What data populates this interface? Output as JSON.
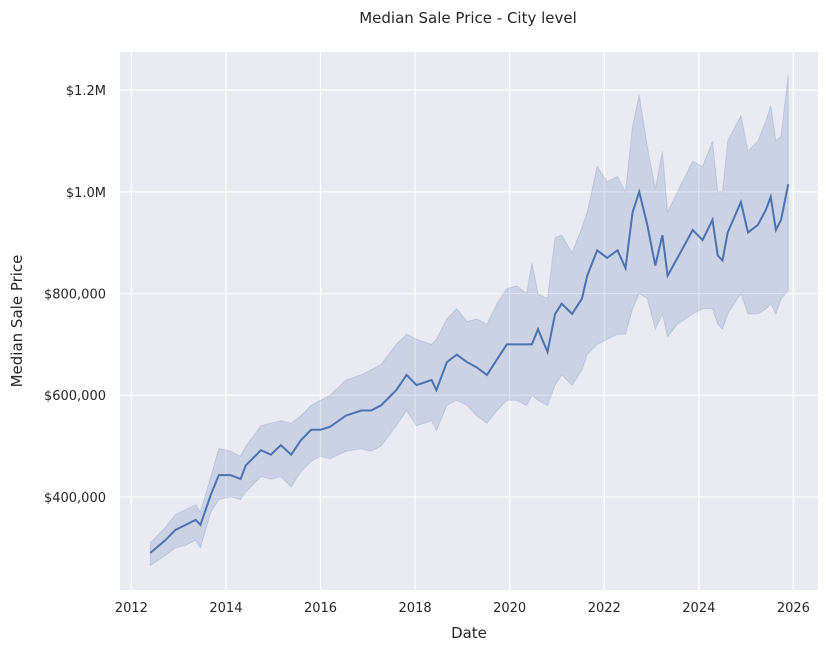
{
  "chart_data": {
    "type": "line",
    "title": "Median Sale Price -  City level",
    "xlabel": "Date",
    "ylabel": "Median Sale Price",
    "xlim": [
      2011.76,
      2026.52
    ],
    "ylim": [
      217000,
      1275000
    ],
    "grid": true,
    "x_ticks": [
      {
        "value": 2012,
        "label": "2012"
      },
      {
        "value": 2014,
        "label": "2014"
      },
      {
        "value": 2016,
        "label": "2016"
      },
      {
        "value": 2018,
        "label": "2018"
      },
      {
        "value": 2020,
        "label": "2020"
      },
      {
        "value": 2022,
        "label": "2022"
      },
      {
        "value": 2024,
        "label": "2024"
      },
      {
        "value": 2026,
        "label": "2026"
      }
    ],
    "y_ticks": [
      {
        "value": 400000,
        "label": "$400,000"
      },
      {
        "value": 600000,
        "label": "$600,000"
      },
      {
        "value": 800000,
        "label": "$800,000"
      },
      {
        "value": 1000000,
        "label": "$1.0M"
      },
      {
        "value": 1200000,
        "label": "$1.2M"
      }
    ],
    "colors": {
      "line": "#4c72b0",
      "band": "#4c72b0",
      "background": "#eaeaf2",
      "grid": "#ffffff"
    },
    "series": [
      {
        "name": "Median Sale Price",
        "points": [
          [
            2012.4,
            290000,
            265000,
            310000
          ],
          [
            2012.72,
            315000,
            285000,
            340000
          ],
          [
            2012.93,
            335000,
            300000,
            365000
          ],
          [
            2013.15,
            345000,
            305000,
            375000
          ],
          [
            2013.36,
            355000,
            315000,
            385000
          ],
          [
            2013.46,
            345000,
            300000,
            370000
          ],
          [
            2013.68,
            404000,
            370000,
            440000
          ],
          [
            2013.85,
            443000,
            395000,
            495000
          ],
          [
            2014.1,
            443000,
            400000,
            490000
          ],
          [
            2014.31,
            435000,
            395000,
            480000
          ],
          [
            2014.42,
            462000,
            410000,
            500000
          ],
          [
            2014.74,
            492000,
            440000,
            540000
          ],
          [
            2014.95,
            483000,
            435000,
            545000
          ],
          [
            2015.16,
            502000,
            440000,
            550000
          ],
          [
            2015.38,
            483000,
            420000,
            545000
          ],
          [
            2015.59,
            512000,
            450000,
            560000
          ],
          [
            2015.8,
            532000,
            470000,
            580000
          ],
          [
            2016.0,
            532000,
            480000,
            590000
          ],
          [
            2016.2,
            538000,
            475000,
            600000
          ],
          [
            2016.54,
            560000,
            490000,
            630000
          ],
          [
            2016.86,
            570000,
            495000,
            640000
          ],
          [
            2017.07,
            570000,
            490000,
            650000
          ],
          [
            2017.28,
            580000,
            500000,
            660000
          ],
          [
            2017.6,
            610000,
            540000,
            700000
          ],
          [
            2017.82,
            640000,
            570000,
            720000
          ],
          [
            2018.03,
            620000,
            540000,
            710000
          ],
          [
            2018.35,
            630000,
            550000,
            700000
          ],
          [
            2018.45,
            610000,
            530000,
            710000
          ],
          [
            2018.67,
            665000,
            580000,
            750000
          ],
          [
            2018.88,
            680000,
            590000,
            770000
          ],
          [
            2019.1,
            665000,
            580000,
            745000
          ],
          [
            2019.3,
            655000,
            560000,
            750000
          ],
          [
            2019.52,
            640000,
            545000,
            740000
          ],
          [
            2019.73,
            670000,
            570000,
            780000
          ],
          [
            2019.94,
            700000,
            590000,
            810000
          ],
          [
            2020.15,
            700000,
            590000,
            815000
          ],
          [
            2020.36,
            700000,
            580000,
            800000
          ],
          [
            2020.47,
            700000,
            600000,
            860000
          ],
          [
            2020.6,
            730000,
            590000,
            800000
          ],
          [
            2020.8,
            685000,
            580000,
            790000
          ],
          [
            2020.96,
            760000,
            620000,
            910000
          ],
          [
            2021.1,
            780000,
            640000,
            915000
          ],
          [
            2021.32,
            760000,
            620000,
            880000
          ],
          [
            2021.53,
            790000,
            650000,
            930000
          ],
          [
            2021.64,
            835000,
            680000,
            960000
          ],
          [
            2021.85,
            885000,
            700000,
            1050000
          ],
          [
            2022.06,
            870000,
            710000,
            1020000
          ],
          [
            2022.28,
            885000,
            720000,
            1030000
          ],
          [
            2022.45,
            850000,
            720000,
            1000000
          ],
          [
            2022.6,
            960000,
            770000,
            1130000
          ],
          [
            2022.74,
            1000000,
            800000,
            1190000
          ],
          [
            2022.91,
            935000,
            790000,
            1090000
          ],
          [
            2023.08,
            855000,
            730000,
            1005000
          ],
          [
            2023.23,
            915000,
            760000,
            1080000
          ],
          [
            2023.34,
            835000,
            715000,
            960000
          ],
          [
            2023.55,
            870000,
            740000,
            1000000
          ],
          [
            2023.87,
            925000,
            760000,
            1060000
          ],
          [
            2024.08,
            905000,
            770000,
            1050000
          ],
          [
            2024.29,
            945000,
            770000,
            1100000
          ],
          [
            2024.4,
            875000,
            740000,
            1000000
          ],
          [
            2024.5,
            865000,
            730000,
            1000000
          ],
          [
            2024.61,
            920000,
            760000,
            1100000
          ],
          [
            2024.89,
            980000,
            800000,
            1150000
          ],
          [
            2025.04,
            920000,
            760000,
            1080000
          ],
          [
            2025.25,
            935000,
            760000,
            1100000
          ],
          [
            2025.42,
            965000,
            770000,
            1140000
          ],
          [
            2025.52,
            990000,
            780000,
            1170000
          ],
          [
            2025.63,
            925000,
            760000,
            1100000
          ],
          [
            2025.74,
            945000,
            790000,
            1110000
          ],
          [
            2025.89,
            1015000,
            805000,
            1230000
          ]
        ]
      }
    ]
  }
}
